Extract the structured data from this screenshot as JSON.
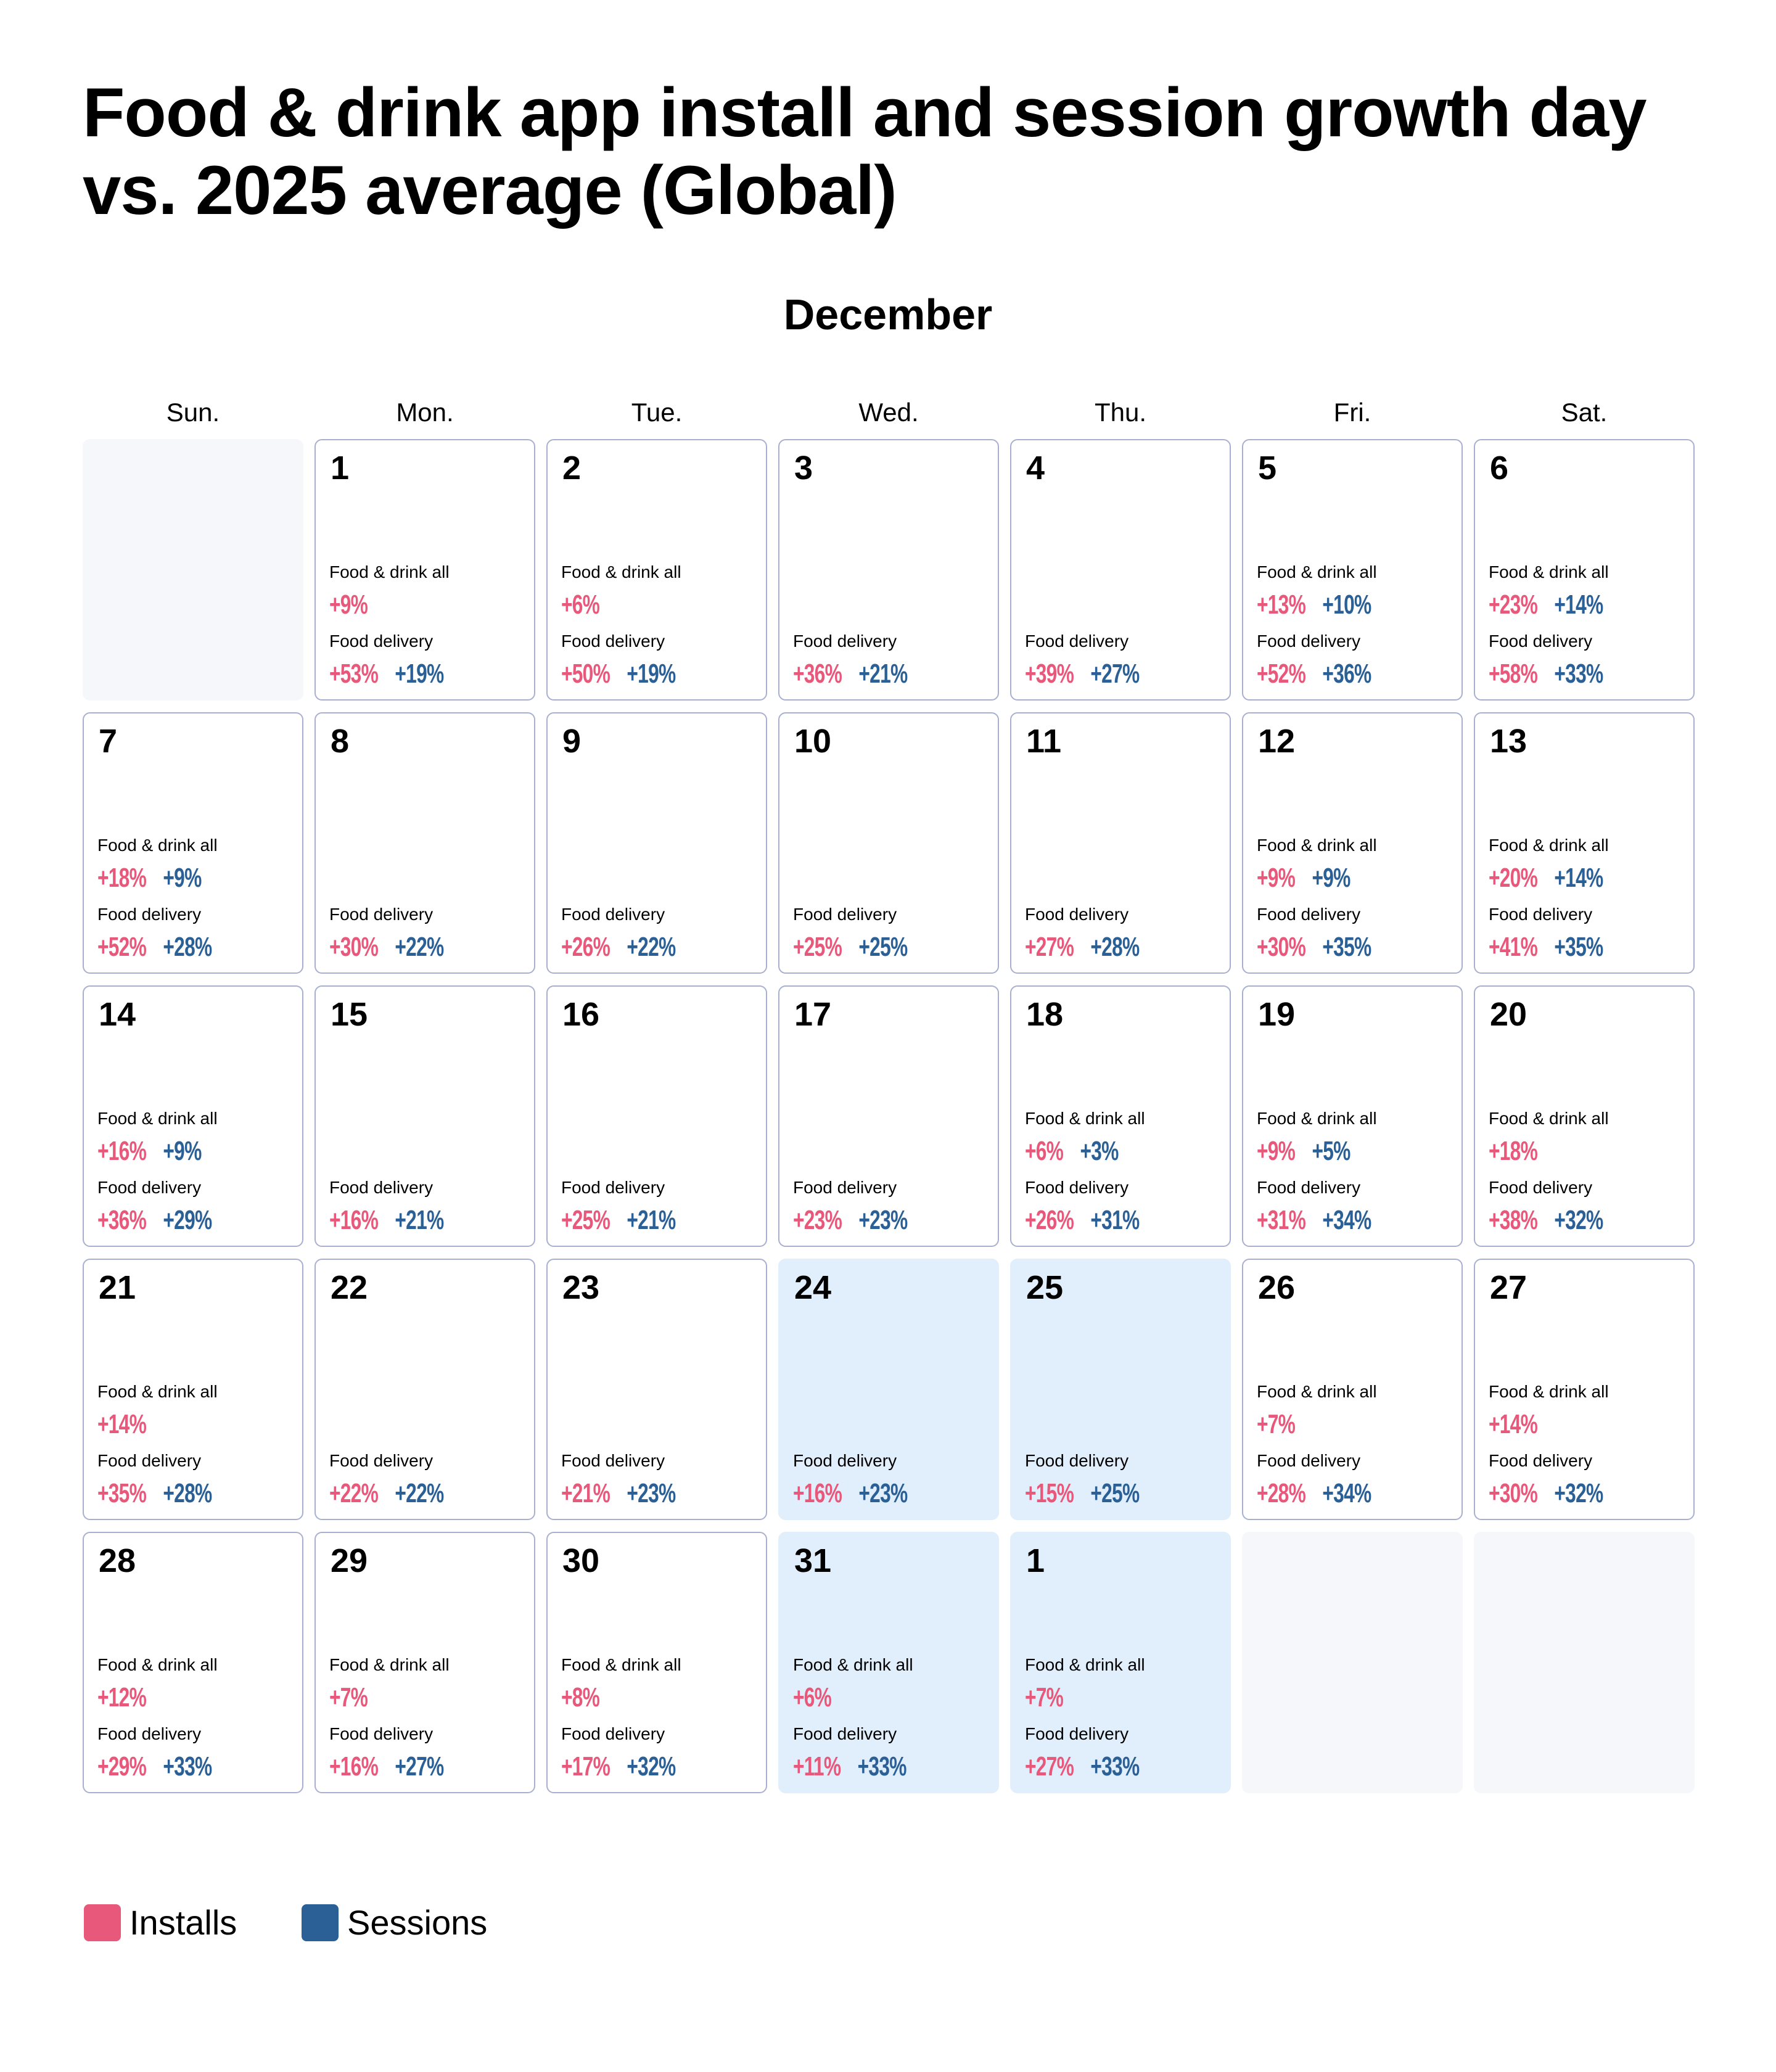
{
  "title": "Food & drink app install and session growth day vs. 2025 average (Global)",
  "chart_data": {
    "type": "table",
    "title": "Food & drink app install and session growth day vs. 2025 average (Global)",
    "month": "December",
    "weekdays": [
      "Sun.",
      "Mon.",
      "Tue.",
      "Wed.",
      "Thu.",
      "Fri.",
      "Sat."
    ],
    "labels": {
      "all": "Food & drink all",
      "delivery": "Food delivery"
    },
    "colors": {
      "installs": "#E8587A",
      "sessions": "#2A6096",
      "border": "#A9AFCF",
      "highlight": "#E1EEFC",
      "empty": "#F5F7FA"
    },
    "legend": [
      {
        "name": "Installs",
        "color": "#E8587A"
      },
      {
        "name": "Sessions",
        "color": "#2A6096"
      }
    ],
    "weeks": [
      [
        {
          "empty": true
        },
        {
          "day": "1",
          "all": {
            "installs": "+9%"
          },
          "delivery": {
            "installs": "+53%",
            "sessions": "+19%"
          }
        },
        {
          "day": "2",
          "all": {
            "installs": "+6%"
          },
          "delivery": {
            "installs": "+50%",
            "sessions": "+19%"
          }
        },
        {
          "day": "3",
          "delivery": {
            "installs": "+36%",
            "sessions": "+21%"
          }
        },
        {
          "day": "4",
          "delivery": {
            "installs": "+39%",
            "sessions": "+27%"
          }
        },
        {
          "day": "5",
          "all": {
            "installs": "+13%",
            "sessions": "+10%"
          },
          "delivery": {
            "installs": "+52%",
            "sessions": "+36%"
          }
        },
        {
          "day": "6",
          "all": {
            "installs": "+23%",
            "sessions": "+14%"
          },
          "delivery": {
            "installs": "+58%",
            "sessions": "+33%"
          }
        }
      ],
      [
        {
          "day": "7",
          "all": {
            "installs": "+18%",
            "sessions": "+9%"
          },
          "delivery": {
            "installs": "+52%",
            "sessions": "+28%"
          }
        },
        {
          "day": "8",
          "delivery": {
            "installs": "+30%",
            "sessions": "+22%"
          }
        },
        {
          "day": "9",
          "delivery": {
            "installs": "+26%",
            "sessions": "+22%"
          }
        },
        {
          "day": "10",
          "delivery": {
            "installs": "+25%",
            "sessions": "+25%"
          }
        },
        {
          "day": "11",
          "delivery": {
            "installs": "+27%",
            "sessions": "+28%"
          }
        },
        {
          "day": "12",
          "all": {
            "installs": "+9%",
            "sessions": "+9%"
          },
          "delivery": {
            "installs": "+30%",
            "sessions": "+35%"
          }
        },
        {
          "day": "13",
          "all": {
            "installs": "+20%",
            "sessions": "+14%"
          },
          "delivery": {
            "installs": "+41%",
            "sessions": "+35%"
          }
        }
      ],
      [
        {
          "day": "14",
          "all": {
            "installs": "+16%",
            "sessions": "+9%"
          },
          "delivery": {
            "installs": "+36%",
            "sessions": "+29%"
          }
        },
        {
          "day": "15",
          "delivery": {
            "installs": "+16%",
            "sessions": "+21%"
          }
        },
        {
          "day": "16",
          "delivery": {
            "installs": "+25%",
            "sessions": "+21%"
          }
        },
        {
          "day": "17",
          "delivery": {
            "installs": "+23%",
            "sessions": "+23%"
          }
        },
        {
          "day": "18",
          "all": {
            "installs": "+6%",
            "sessions": "+3%"
          },
          "delivery": {
            "installs": "+26%",
            "sessions": "+31%"
          }
        },
        {
          "day": "19",
          "all": {
            "installs": "+9%",
            "sessions": "+5%"
          },
          "delivery": {
            "installs": "+31%",
            "sessions": "+34%"
          }
        },
        {
          "day": "20",
          "all": {
            "installs": "+18%"
          },
          "delivery": {
            "installs": "+38%",
            "sessions": "+32%"
          }
        }
      ],
      [
        {
          "day": "21",
          "all": {
            "installs": "+14%"
          },
          "delivery": {
            "installs": "+35%",
            "sessions": "+28%"
          }
        },
        {
          "day": "22",
          "delivery": {
            "installs": "+22%",
            "sessions": "+22%"
          }
        },
        {
          "day": "23",
          "delivery": {
            "installs": "+21%",
            "sessions": "+23%"
          }
        },
        {
          "day": "24",
          "highlight": true,
          "delivery": {
            "installs": "+16%",
            "sessions": "+23%"
          }
        },
        {
          "day": "25",
          "highlight": true,
          "delivery": {
            "installs": "+15%",
            "sessions": "+25%"
          }
        },
        {
          "day": "26",
          "all": {
            "installs": "+7%"
          },
          "delivery": {
            "installs": "+28%",
            "sessions": "+34%"
          }
        },
        {
          "day": "27",
          "all": {
            "installs": "+14%"
          },
          "delivery": {
            "installs": "+30%",
            "sessions": "+32%"
          }
        }
      ],
      [
        {
          "day": "28",
          "all": {
            "installs": "+12%"
          },
          "delivery": {
            "installs": "+29%",
            "sessions": "+33%"
          }
        },
        {
          "day": "29",
          "all": {
            "installs": "+7%"
          },
          "delivery": {
            "installs": "+16%",
            "sessions": "+27%"
          }
        },
        {
          "day": "30",
          "all": {
            "installs": "+8%"
          },
          "delivery": {
            "installs": "+17%",
            "sessions": "+32%"
          }
        },
        {
          "day": "31",
          "highlight": true,
          "all": {
            "installs": "+6%"
          },
          "delivery": {
            "installs": "+11%",
            "sessions": "+33%"
          }
        },
        {
          "day": "1",
          "highlight": true,
          "all": {
            "installs": "+7%"
          },
          "delivery": {
            "installs": "+27%",
            "sessions": "+33%"
          }
        },
        {
          "empty": true
        },
        {
          "empty": true
        }
      ]
    ]
  }
}
